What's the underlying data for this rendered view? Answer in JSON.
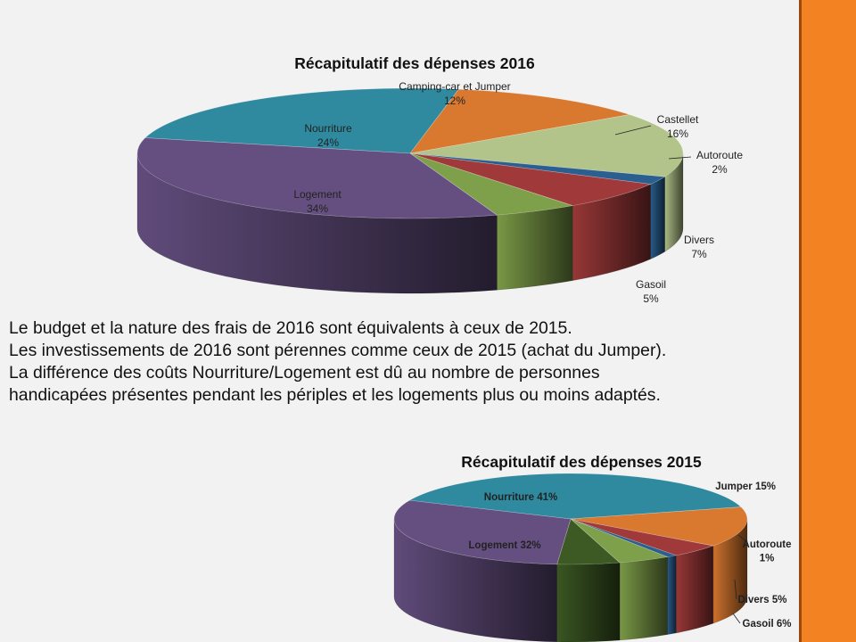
{
  "chart_data": [
    {
      "type": "pie",
      "title": "Récapitulatif des dépenses 2016",
      "slices": [
        {
          "label": "Nourriture",
          "value": 24,
          "value_label": "24%",
          "color": "#2f8aa0"
        },
        {
          "label": "Camping-car et Jumper",
          "value": 12,
          "value_label": "12%",
          "color": "#d9782f"
        },
        {
          "label": "Castellet",
          "value": 16,
          "value_label": "16%",
          "color": "#b2c48a"
        },
        {
          "label": "Autoroute",
          "value": 2,
          "value_label": "2%",
          "color": "#2a5f8f"
        },
        {
          "label": "Divers",
          "value": 7,
          "value_label": "7%",
          "color": "#a03a3a"
        },
        {
          "label": "Gasoil",
          "value": 5,
          "value_label": "5%",
          "color": "#7fa04a"
        },
        {
          "label": "Logement",
          "value": 34,
          "value_label": "34%",
          "color": "#654f80"
        }
      ]
    },
    {
      "type": "pie",
      "title": "Récapitulatif des dépenses  2015",
      "slices": [
        {
          "label": "Nourriture",
          "value": 41,
          "value_label": "41%",
          "color": "#2f8aa0"
        },
        {
          "label": "Jumper",
          "value": 15,
          "value_label": "15%",
          "color": "#d9782f"
        },
        {
          "label": "",
          "value": 5,
          "value_label": "",
          "color": "#a03a3a"
        },
        {
          "label": "Autoroute",
          "value": 1,
          "value_label": "1%",
          "color": "#2a5f8f"
        },
        {
          "label": "Divers",
          "value": 5,
          "value_label": "5%",
          "color": "#7fa04a"
        },
        {
          "label": "Gasoil",
          "value": 6,
          "value_label": "6%",
          "color": "#3d5a24"
        },
        {
          "label": "Logement",
          "value": 32,
          "value_label": "32%",
          "color": "#654f80"
        }
      ]
    }
  ],
  "text": {
    "lines": [
      "Le budget et la nature des frais de 2016 sont équivalents à ceux de 2015.",
      "Les investissements de 2016 sont pérennes comme ceux de 2015 (achat du Jumper).",
      "La différence des coûts Nourriture/Logement est dû au nombre de personnes",
      "handicapées présentes pendant les périples et les logements plus ou moins adaptés."
    ]
  }
}
